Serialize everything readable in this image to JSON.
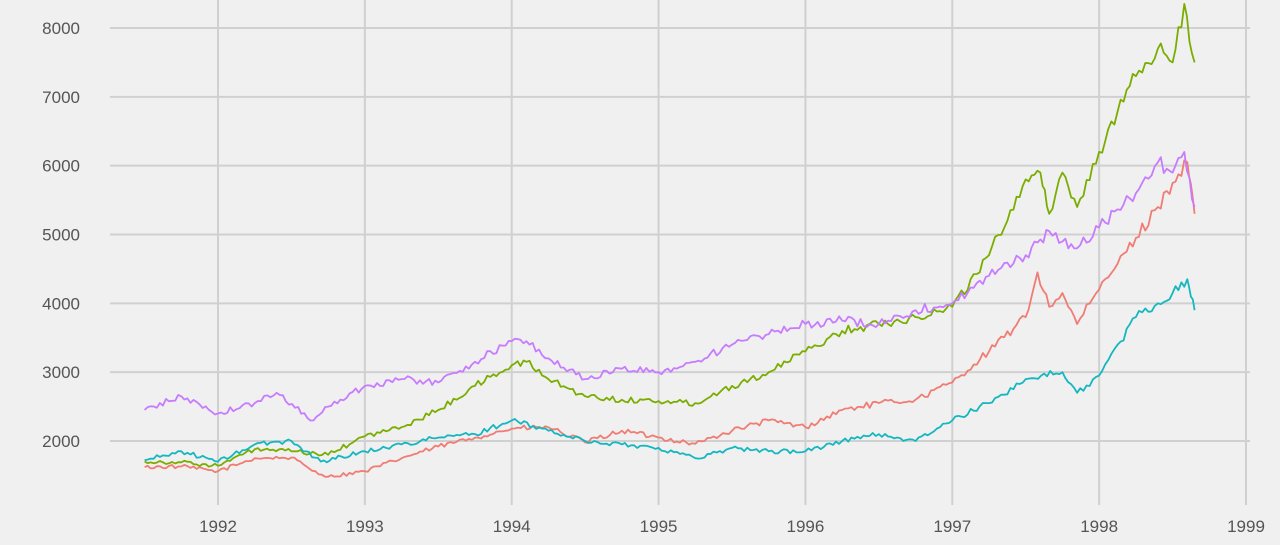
{
  "chart_data": {
    "type": "line",
    "title": "",
    "xlabel": "",
    "ylabel": "",
    "xlim": [
      1991.2,
      1999.0
    ],
    "ylim": [
      1100,
      8450
    ],
    "grid": true,
    "legend": "none",
    "xticks": [
      1992,
      1993,
      1994,
      1995,
      1996,
      1997,
      1998,
      1999
    ],
    "xtick_labels": [
      "1992",
      "1993",
      "1994",
      "1995",
      "1996",
      "1997",
      "1998",
      "1999"
    ],
    "yticks": [
      2000,
      3000,
      4000,
      5000,
      6000,
      7000,
      8000
    ],
    "ytick_labels": [
      "2000",
      "3000",
      "4000",
      "5000",
      "6000",
      "7000",
      "8000"
    ],
    "series": [
      {
        "color": "#f07c74",
        "x": [
          1991.5,
          1991.75,
          1992.0,
          1992.25,
          1992.5,
          1992.62,
          1992.75,
          1993.0,
          1993.25,
          1993.5,
          1993.75,
          1994.0,
          1994.25,
          1994.5,
          1994.75,
          1995.0,
          1995.25,
          1995.5,
          1995.75,
          1996.0,
          1996.25,
          1996.5,
          1996.75,
          1997.0,
          1997.25,
          1997.5,
          1997.58,
          1997.66,
          1997.75,
          1997.85,
          1998.0,
          1998.25,
          1998.4,
          1998.5,
          1998.6,
          1998.65
        ],
        "y": [
          1620,
          1630,
          1560,
          1750,
          1760,
          1600,
          1480,
          1560,
          1750,
          1920,
          2050,
          2180,
          2200,
          1980,
          2150,
          2050,
          1960,
          2150,
          2300,
          2200,
          2450,
          2550,
          2600,
          2850,
          3300,
          3800,
          4450,
          3950,
          4150,
          3700,
          4200,
          4950,
          5400,
          5750,
          6050,
          5300
        ]
      },
      {
        "color": "#7aad00",
        "x": [
          1991.5,
          1991.75,
          1992.0,
          1992.25,
          1992.5,
          1992.75,
          1993.0,
          1993.25,
          1993.5,
          1993.75,
          1994.0,
          1994.1,
          1994.25,
          1994.5,
          1994.75,
          1995.0,
          1995.25,
          1995.5,
          1995.75,
          1996.0,
          1996.25,
          1996.5,
          1996.75,
          1997.0,
          1997.25,
          1997.5,
          1997.6,
          1997.66,
          1997.75,
          1997.85,
          1998.0,
          1998.25,
          1998.4,
          1998.5,
          1998.58,
          1998.65
        ],
        "y": [
          1700,
          1690,
          1640,
          1880,
          1850,
          1800,
          2070,
          2200,
          2450,
          2800,
          3100,
          3150,
          2900,
          2650,
          2600,
          2580,
          2550,
          2800,
          3000,
          3300,
          3600,
          3700,
          3800,
          3950,
          4700,
          5800,
          5900,
          5300,
          5900,
          5400,
          6200,
          7300,
          7700,
          7500,
          8350,
          7500
        ]
      },
      {
        "color": "#14b7c0",
        "x": [
          1991.5,
          1991.75,
          1992.0,
          1992.25,
          1992.5,
          1992.7,
          1993.0,
          1993.25,
          1993.5,
          1993.75,
          1994.0,
          1994.25,
          1994.5,
          1994.75,
          1995.0,
          1995.25,
          1995.5,
          1995.75,
          1996.0,
          1996.25,
          1996.5,
          1996.75,
          1997.0,
          1997.25,
          1997.5,
          1997.75,
          1997.85,
          1998.0,
          1998.25,
          1998.4,
          1998.5,
          1998.6,
          1998.65
        ],
        "y": [
          1720,
          1850,
          1700,
          1950,
          2000,
          1700,
          1850,
          1950,
          2050,
          2100,
          2300,
          2150,
          2000,
          1950,
          1900,
          1750,
          1900,
          1850,
          1850,
          2000,
          2100,
          2000,
          2300,
          2550,
          2900,
          3000,
          2700,
          2950,
          3800,
          4000,
          4150,
          4350,
          3900
        ]
      },
      {
        "color": "#c77cff",
        "x": [
          1991.5,
          1991.75,
          1992.0,
          1992.25,
          1992.4,
          1992.65,
          1992.75,
          1993.0,
          1993.25,
          1993.5,
          1993.75,
          1994.0,
          1994.1,
          1994.25,
          1994.5,
          1994.75,
          1995.0,
          1995.25,
          1995.5,
          1995.75,
          1996.0,
          1996.25,
          1996.5,
          1996.75,
          1997.0,
          1997.25,
          1997.5,
          1997.66,
          1997.75,
          1997.85,
          1998.0,
          1998.25,
          1998.4,
          1998.5,
          1998.58,
          1998.65
        ],
        "y": [
          2450,
          2650,
          2400,
          2550,
          2700,
          2300,
          2500,
          2800,
          2900,
          2850,
          3150,
          3450,
          3450,
          3200,
          2900,
          3050,
          3000,
          3150,
          3400,
          3550,
          3700,
          3750,
          3700,
          3900,
          4000,
          4400,
          4700,
          5050,
          4900,
          4800,
          5100,
          5600,
          6050,
          5900,
          6200,
          5400
        ]
      }
    ]
  }
}
